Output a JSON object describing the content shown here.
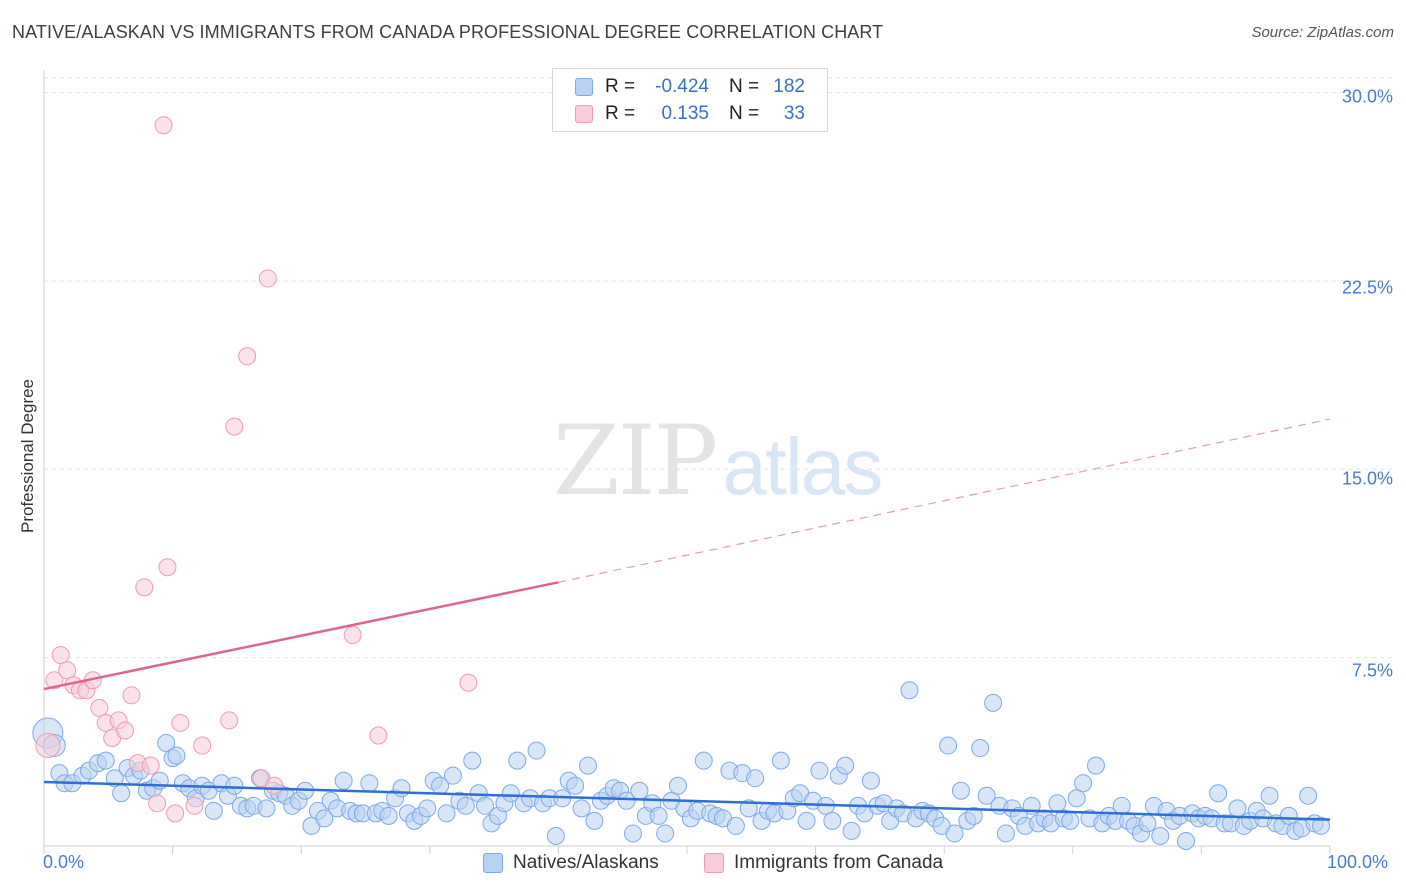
{
  "title": "NATIVE/ALASKAN VS IMMIGRANTS FROM CANADA PROFESSIONAL DEGREE CORRELATION CHART",
  "source": "Source: ZipAtlas.com",
  "watermark": {
    "zip": "ZIP",
    "atlas": "atlas"
  },
  "legend": {
    "rows": [
      {
        "r_label": "R =",
        "r_value": "-0.424",
        "n_label": "N =",
        "n_value": "182"
      },
      {
        "r_label": "R =",
        "r_value": "0.135",
        "n_label": "N =",
        "n_value": "33"
      }
    ]
  },
  "chart_data": {
    "type": "scatter",
    "title": "NATIVE/ALASKAN VS IMMIGRANTS FROM CANADA PROFESSIONAL DEGREE CORRELATION CHART",
    "xlabel": "",
    "ylabel": "Professional Degree",
    "xlim": [
      0,
      100
    ],
    "ylim": [
      0,
      30.9
    ],
    "x_tick_labels": [
      "0.0%",
      "100.0%"
    ],
    "y_ticks": [
      7.5,
      15.0,
      22.5,
      30.0
    ],
    "y_tick_labels": [
      "7.5%",
      "15.0%",
      "22.5%",
      "30.0%"
    ],
    "grid": true,
    "legend_position": "top-center",
    "series": [
      {
        "name": "Natives/Alaskans",
        "color": "#7aaae8",
        "fill": "#b9d2f3",
        "trend": {
          "x0": 0,
          "y0": 2.55,
          "x1": 100,
          "y1": 1.05,
          "style": "solid"
        },
        "points": [
          [
            0.3,
            4.5
          ],
          [
            0.8,
            4.0
          ],
          [
            1.2,
            2.9
          ],
          [
            1.6,
            2.5
          ],
          [
            2.2,
            2.5
          ],
          [
            3.0,
            2.8
          ],
          [
            3.5,
            3.0
          ],
          [
            4.2,
            3.3
          ],
          [
            4.8,
            3.4
          ],
          [
            5.5,
            2.7
          ],
          [
            6.0,
            2.1
          ],
          [
            6.5,
            3.1
          ],
          [
            7.0,
            2.8
          ],
          [
            7.5,
            3.0
          ],
          [
            8.0,
            2.2
          ],
          [
            8.5,
            2.3
          ],
          [
            9.0,
            2.6
          ],
          [
            9.5,
            4.1
          ],
          [
            10.0,
            3.5
          ],
          [
            10.3,
            3.6
          ],
          [
            10.8,
            2.5
          ],
          [
            11.3,
            2.3
          ],
          [
            11.8,
            1.9
          ],
          [
            12.3,
            2.4
          ],
          [
            12.8,
            2.2
          ],
          [
            13.2,
            1.4
          ],
          [
            13.8,
            2.5
          ],
          [
            14.3,
            2.0
          ],
          [
            14.8,
            2.4
          ],
          [
            15.3,
            1.6
          ],
          [
            15.8,
            1.5
          ],
          [
            16.3,
            1.6
          ],
          [
            16.8,
            2.7
          ],
          [
            17.3,
            1.5
          ],
          [
            17.8,
            2.2
          ],
          [
            18.3,
            2.1
          ],
          [
            18.8,
            2.0
          ],
          [
            19.3,
            1.6
          ],
          [
            19.8,
            1.8
          ],
          [
            20.3,
            2.2
          ],
          [
            20.8,
            0.8
          ],
          [
            21.3,
            1.4
          ],
          [
            21.8,
            1.1
          ],
          [
            22.3,
            1.8
          ],
          [
            22.8,
            1.5
          ],
          [
            23.3,
            2.6
          ],
          [
            23.8,
            1.4
          ],
          [
            24.3,
            1.3
          ],
          [
            24.8,
            1.3
          ],
          [
            25.3,
            2.5
          ],
          [
            25.8,
            1.3
          ],
          [
            26.3,
            1.4
          ],
          [
            26.8,
            1.2
          ],
          [
            27.3,
            1.9
          ],
          [
            27.8,
            2.3
          ],
          [
            28.3,
            1.3
          ],
          [
            28.8,
            1.0
          ],
          [
            29.3,
            1.2
          ],
          [
            29.8,
            1.5
          ],
          [
            30.3,
            2.6
          ],
          [
            30.8,
            2.4
          ],
          [
            31.3,
            1.3
          ],
          [
            31.8,
            2.8
          ],
          [
            32.3,
            1.8
          ],
          [
            32.8,
            1.6
          ],
          [
            33.3,
            3.4
          ],
          [
            33.8,
            2.1
          ],
          [
            34.3,
            1.6
          ],
          [
            34.8,
            0.9
          ],
          [
            35.3,
            1.2
          ],
          [
            35.8,
            1.7
          ],
          [
            36.3,
            2.1
          ],
          [
            36.8,
            3.4
          ],
          [
            37.3,
            1.7
          ],
          [
            37.8,
            1.9
          ],
          [
            38.3,
            3.8
          ],
          [
            38.8,
            1.7
          ],
          [
            39.3,
            1.9
          ],
          [
            39.8,
            0.4
          ],
          [
            40.3,
            1.9
          ],
          [
            40.8,
            2.6
          ],
          [
            41.3,
            2.4
          ],
          [
            41.8,
            1.5
          ],
          [
            42.3,
            3.2
          ],
          [
            42.8,
            1.0
          ],
          [
            43.3,
            1.8
          ],
          [
            43.8,
            2.0
          ],
          [
            44.3,
            2.3
          ],
          [
            44.8,
            2.2
          ],
          [
            45.3,
            1.8
          ],
          [
            45.8,
            0.5
          ],
          [
            46.3,
            2.2
          ],
          [
            46.8,
            1.2
          ],
          [
            47.3,
            1.7
          ],
          [
            47.8,
            1.2
          ],
          [
            48.3,
            0.5
          ],
          [
            48.8,
            1.8
          ],
          [
            49.3,
            2.4
          ],
          [
            49.8,
            1.5
          ],
          [
            50.3,
            1.1
          ],
          [
            50.8,
            1.4
          ],
          [
            51.3,
            3.4
          ],
          [
            51.8,
            1.3
          ],
          [
            52.3,
            1.2
          ],
          [
            52.8,
            1.1
          ],
          [
            53.3,
            3.0
          ],
          [
            53.8,
            0.8
          ],
          [
            54.3,
            2.9
          ],
          [
            54.8,
            1.5
          ],
          [
            55.3,
            2.7
          ],
          [
            55.8,
            1.0
          ],
          [
            56.3,
            1.4
          ],
          [
            56.8,
            1.3
          ],
          [
            57.3,
            3.4
          ],
          [
            57.8,
            1.4
          ],
          [
            58.3,
            1.9
          ],
          [
            58.8,
            2.1
          ],
          [
            59.3,
            1.0
          ],
          [
            59.8,
            1.8
          ],
          [
            60.3,
            3.0
          ],
          [
            60.8,
            1.6
          ],
          [
            61.3,
            1.0
          ],
          [
            61.8,
            2.8
          ],
          [
            62.3,
            3.2
          ],
          [
            62.8,
            0.6
          ],
          [
            63.3,
            1.6
          ],
          [
            63.8,
            1.3
          ],
          [
            64.3,
            2.6
          ],
          [
            64.8,
            1.6
          ],
          [
            65.3,
            1.7
          ],
          [
            65.8,
            1.0
          ],
          [
            66.3,
            1.5
          ],
          [
            66.8,
            1.3
          ],
          [
            67.3,
            6.2
          ],
          [
            67.8,
            1.1
          ],
          [
            68.3,
            1.4
          ],
          [
            68.8,
            1.3
          ],
          [
            69.3,
            1.1
          ],
          [
            69.8,
            0.8
          ],
          [
            70.3,
            4.0
          ],
          [
            70.8,
            0.5
          ],
          [
            71.3,
            2.2
          ],
          [
            71.8,
            1.0
          ],
          [
            72.3,
            1.2
          ],
          [
            72.8,
            3.9
          ],
          [
            73.3,
            2.0
          ],
          [
            73.8,
            5.7
          ],
          [
            74.3,
            1.6
          ],
          [
            74.8,
            0.5
          ],
          [
            75.3,
            1.5
          ],
          [
            75.8,
            1.2
          ],
          [
            76.3,
            0.8
          ],
          [
            76.8,
            1.6
          ],
          [
            77.3,
            0.9
          ],
          [
            77.8,
            1.1
          ],
          [
            78.3,
            0.9
          ],
          [
            78.8,
            1.7
          ],
          [
            79.3,
            1.1
          ],
          [
            79.8,
            1.0
          ],
          [
            80.3,
            1.9
          ],
          [
            80.8,
            2.5
          ],
          [
            81.3,
            1.1
          ],
          [
            81.8,
            3.2
          ],
          [
            82.3,
            0.9
          ],
          [
            82.8,
            1.2
          ],
          [
            83.3,
            1.0
          ],
          [
            83.8,
            1.6
          ],
          [
            84.3,
            1.0
          ],
          [
            84.8,
            0.8
          ],
          [
            85.3,
            0.5
          ],
          [
            85.8,
            0.9
          ],
          [
            86.3,
            1.6
          ],
          [
            86.8,
            0.4
          ],
          [
            87.3,
            1.4
          ],
          [
            87.8,
            1.0
          ],
          [
            88.3,
            1.2
          ],
          [
            88.8,
            0.2
          ],
          [
            89.3,
            1.3
          ],
          [
            89.8,
            1.1
          ],
          [
            90.3,
            1.2
          ],
          [
            90.8,
            1.1
          ],
          [
            91.3,
            2.1
          ],
          [
            91.8,
            0.9
          ],
          [
            92.3,
            0.9
          ],
          [
            92.8,
            1.5
          ],
          [
            93.3,
            0.8
          ],
          [
            93.8,
            1.0
          ],
          [
            94.3,
            1.4
          ],
          [
            94.8,
            1.1
          ],
          [
            95.3,
            2.0
          ],
          [
            95.8,
            0.9
          ],
          [
            96.3,
            0.8
          ],
          [
            96.8,
            1.2
          ],
          [
            97.3,
            0.6
          ],
          [
            97.8,
            0.7
          ],
          [
            98.3,
            2.0
          ],
          [
            98.8,
            0.9
          ],
          [
            99.3,
            0.8
          ]
        ]
      },
      {
        "name": "Immigrants from Canada",
        "color": "#ef9ab5",
        "fill": "#f9ccd9",
        "trend": {
          "x0": 0,
          "y0": 6.25,
          "x1": 40,
          "y1": 10.5,
          "style": "solid",
          "dashed_to": {
            "x": 100,
            "y": 17.0
          }
        },
        "points": [
          [
            0.3,
            4.0
          ],
          [
            0.8,
            6.6
          ],
          [
            1.3,
            7.6
          ],
          [
            1.8,
            7.0
          ],
          [
            2.3,
            6.4
          ],
          [
            2.8,
            6.2
          ],
          [
            3.3,
            6.2
          ],
          [
            3.8,
            6.6
          ],
          [
            4.3,
            5.5
          ],
          [
            4.8,
            4.9
          ],
          [
            5.3,
            4.3
          ],
          [
            5.8,
            5.0
          ],
          [
            6.3,
            4.6
          ],
          [
            6.8,
            6.0
          ],
          [
            7.3,
            3.3
          ],
          [
            7.8,
            10.3
          ],
          [
            8.3,
            3.2
          ],
          [
            8.8,
            1.7
          ],
          [
            9.3,
            28.7
          ],
          [
            9.6,
            11.1
          ],
          [
            10.2,
            1.3
          ],
          [
            10.6,
            4.9
          ],
          [
            11.7,
            1.6
          ],
          [
            12.3,
            4.0
          ],
          [
            14.4,
            5.0
          ],
          [
            14.8,
            16.7
          ],
          [
            15.8,
            19.5
          ],
          [
            16.9,
            2.7
          ],
          [
            17.4,
            22.6
          ],
          [
            17.9,
            2.4
          ],
          [
            24.0,
            8.4
          ],
          [
            26.0,
            4.4
          ],
          [
            33.0,
            6.5
          ]
        ]
      }
    ]
  },
  "bottom_legend": [
    {
      "label": "Natives/Alaskans"
    },
    {
      "label": "Immigrants from Canada"
    }
  ]
}
